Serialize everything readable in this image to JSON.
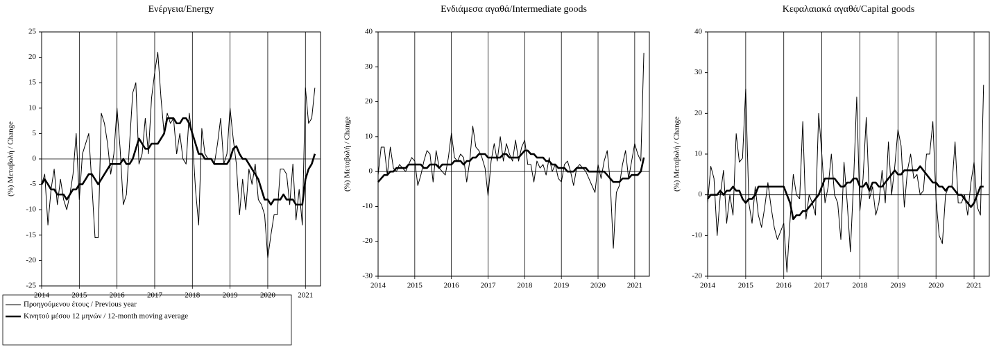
{
  "chart_data": [
    {
      "type": "line",
      "title": "Ενέργεια/Energy",
      "ylabel": "(%) Μεταβολή / Change",
      "x": [
        2014,
        2014.083,
        2014.167,
        2014.25,
        2014.333,
        2014.417,
        2014.5,
        2014.583,
        2014.667,
        2014.75,
        2014.833,
        2014.917,
        2015,
        2015.083,
        2015.167,
        2015.25,
        2015.333,
        2015.417,
        2015.5,
        2015.583,
        2015.667,
        2015.75,
        2015.833,
        2015.917,
        2016,
        2016.083,
        2016.167,
        2016.25,
        2016.333,
        2016.417,
        2016.5,
        2016.583,
        2016.667,
        2016.75,
        2016.833,
        2016.917,
        2017,
        2017.083,
        2017.167,
        2017.25,
        2017.333,
        2017.417,
        2017.5,
        2017.583,
        2017.667,
        2017.75,
        2017.833,
        2017.917,
        2018,
        2018.083,
        2018.167,
        2018.25,
        2018.333,
        2018.417,
        2018.5,
        2018.583,
        2018.667,
        2018.75,
        2018.833,
        2018.917,
        2019,
        2019.083,
        2019.167,
        2019.25,
        2019.333,
        2019.417,
        2019.5,
        2019.583,
        2019.667,
        2019.75,
        2019.833,
        2019.917,
        2020,
        2020.083,
        2020.167,
        2020.25,
        2020.333,
        2020.417,
        2020.5,
        2020.583,
        2020.667,
        2020.75,
        2020.833,
        2020.917,
        2021,
        2021.083,
        2021.167,
        2021.25
      ],
      "xlim": [
        2014,
        2021.4
      ],
      "xticks": [
        2014,
        2015,
        2016,
        2017,
        2018,
        2019,
        2020,
        2021
      ],
      "ylim": [
        -25,
        25
      ],
      "yticks": [
        -25,
        -20,
        -15,
        -10,
        -5,
        0,
        5,
        10,
        15,
        20,
        25
      ],
      "series": [
        {
          "name": "Προηγούμενου έτους / Previous year",
          "color": "#000000",
          "values": [
            -5,
            -3,
            -13,
            -6,
            -2,
            -9,
            -4,
            -8,
            -10,
            -7,
            -3,
            5,
            -8,
            1,
            3,
            5,
            -5,
            -15.5,
            -15.5,
            9,
            7,
            3,
            -3,
            1,
            10,
            2,
            -9,
            -7,
            3,
            13,
            15,
            -1,
            1,
            8,
            1,
            12,
            17,
            21,
            12,
            5,
            9,
            7,
            8,
            1,
            5,
            0,
            -1,
            9,
            4,
            -6,
            -13,
            6,
            1,
            0,
            0,
            -1,
            3,
            8,
            -1,
            1,
            10,
            4,
            -1,
            -11,
            -4,
            -10,
            -2,
            -5,
            -1,
            -8,
            -9,
            -11,
            -19.5,
            -15,
            -11,
            -11,
            -2,
            -2,
            -3,
            -9,
            -1,
            -12,
            -6,
            -13,
            14,
            7,
            8,
            14
          ]
        },
        {
          "name": "Κινητού μέσου 12 μηνών / 12-month moving average",
          "color": "#000000",
          "values": [
            -5,
            -4,
            -5,
            -6,
            -6,
            -7,
            -7,
            -7,
            -8,
            -7,
            -6,
            -6,
            -5,
            -5,
            -4,
            -3,
            -3,
            -4,
            -5,
            -4,
            -3,
            -2,
            -1,
            -1,
            -1,
            -1,
            0,
            -1,
            -1,
            0,
            2,
            4,
            3,
            2,
            2,
            3,
            3,
            3,
            4,
            5,
            8,
            8,
            8,
            7,
            7,
            8,
            8,
            7,
            5,
            3,
            1,
            1,
            0,
            0,
            0,
            -1,
            -1,
            -1,
            -1,
            -1,
            0,
            2,
            2.5,
            1,
            0,
            0,
            -1,
            -2,
            -3,
            -4,
            -6,
            -8,
            -8,
            -9,
            -8,
            -8,
            -8,
            -7,
            -8,
            -8,
            -8,
            -9,
            -9,
            -9,
            -4,
            -2,
            -1,
            1
          ]
        }
      ]
    },
    {
      "type": "line",
      "title": "Ενδιάμεσα αγαθά/Intermediate goods",
      "ylabel": "(%) Μεταβολή / Change",
      "x": [
        2014,
        2014.083,
        2014.167,
        2014.25,
        2014.333,
        2014.417,
        2014.5,
        2014.583,
        2014.667,
        2014.75,
        2014.833,
        2014.917,
        2015,
        2015.083,
        2015.167,
        2015.25,
        2015.333,
        2015.417,
        2015.5,
        2015.583,
        2015.667,
        2015.75,
        2015.833,
        2015.917,
        2016,
        2016.083,
        2016.167,
        2016.25,
        2016.333,
        2016.417,
        2016.5,
        2016.583,
        2016.667,
        2016.75,
        2016.833,
        2016.917,
        2017,
        2017.083,
        2017.167,
        2017.25,
        2017.333,
        2017.417,
        2017.5,
        2017.583,
        2017.667,
        2017.75,
        2017.833,
        2017.917,
        2018,
        2018.083,
        2018.167,
        2018.25,
        2018.333,
        2018.417,
        2018.5,
        2018.583,
        2018.667,
        2018.75,
        2018.833,
        2018.917,
        2019,
        2019.083,
        2019.167,
        2019.25,
        2019.333,
        2019.417,
        2019.5,
        2019.583,
        2019.667,
        2019.75,
        2019.833,
        2019.917,
        2020,
        2020.083,
        2020.167,
        2020.25,
        2020.333,
        2020.417,
        2020.5,
        2020.583,
        2020.667,
        2020.75,
        2020.833,
        2020.917,
        2021,
        2021.083,
        2021.167,
        2021.25
      ],
      "xlim": [
        2014,
        2021.4
      ],
      "xticks": [
        2014,
        2015,
        2016,
        2017,
        2018,
        2019,
        2020,
        2021
      ],
      "ylim": [
        -30,
        40
      ],
      "yticks": [
        -30,
        -20,
        -10,
        0,
        10,
        20,
        30,
        40
      ],
      "series": [
        {
          "color": "#000000",
          "values": [
            -1,
            7,
            7,
            -1,
            7,
            1,
            0,
            2,
            1,
            0,
            2,
            4,
            3,
            -4,
            -1,
            3,
            6,
            5,
            -3,
            6,
            1,
            0,
            -1,
            4,
            11,
            4,
            3,
            5,
            4,
            -3,
            3,
            13,
            7,
            6,
            4,
            1,
            -7,
            3,
            8,
            3,
            10,
            3,
            8,
            5,
            3,
            9,
            3,
            7,
            9,
            2,
            2,
            -3,
            3,
            1,
            2,
            -1,
            4,
            0,
            2,
            -2,
            -3,
            2,
            3,
            0,
            -4,
            1,
            2,
            1,
            0,
            -2,
            -4,
            -6,
            2,
            -2,
            3,
            6,
            -3,
            -22,
            -6,
            -4,
            2,
            6,
            -2,
            3,
            8,
            5,
            3,
            34
          ]
        },
        {
          "color": "#000000",
          "values": [
            -3,
            -2,
            -1,
            -1,
            0,
            0,
            1,
            1,
            1,
            1,
            2,
            2,
            2,
            2,
            2,
            1,
            1,
            2,
            2,
            2,
            1,
            2,
            2,
            2,
            2,
            3,
            3,
            3,
            2,
            3,
            3,
            4,
            4,
            5,
            5,
            5,
            4,
            4,
            4,
            4,
            4,
            5,
            5,
            4,
            4,
            4,
            4,
            5,
            6,
            6,
            5,
            5,
            4,
            4,
            4,
            3,
            3,
            2,
            2,
            1,
            1,
            1,
            0,
            0,
            0,
            1,
            1,
            1,
            1,
            0,
            0,
            0,
            0,
            0,
            0,
            -1,
            -2,
            -3,
            -3,
            -3,
            -2,
            -2,
            -2,
            -1,
            -1,
            -1,
            0,
            4
          ]
        }
      ]
    },
    {
      "type": "line",
      "title": "Κεφαλαιακά αγαθά/Capital goods",
      "ylabel": "(%) Μεταβολή / Change",
      "x": [
        2014,
        2014.083,
        2014.167,
        2014.25,
        2014.333,
        2014.417,
        2014.5,
        2014.583,
        2014.667,
        2014.75,
        2014.833,
        2014.917,
        2015,
        2015.083,
        2015.167,
        2015.25,
        2015.333,
        2015.417,
        2015.5,
        2015.583,
        2015.667,
        2015.75,
        2015.833,
        2015.917,
        2016,
        2016.083,
        2016.167,
        2016.25,
        2016.333,
        2016.417,
        2016.5,
        2016.583,
        2016.667,
        2016.75,
        2016.833,
        2016.917,
        2017,
        2017.083,
        2017.167,
        2017.25,
        2017.333,
        2017.417,
        2017.5,
        2017.583,
        2017.667,
        2017.75,
        2017.833,
        2017.917,
        2018,
        2018.083,
        2018.167,
        2018.25,
        2018.333,
        2018.417,
        2018.5,
        2018.583,
        2018.667,
        2018.75,
        2018.833,
        2018.917,
        2019,
        2019.083,
        2019.167,
        2019.25,
        2019.333,
        2019.417,
        2019.5,
        2019.583,
        2019.667,
        2019.75,
        2019.833,
        2019.917,
        2020,
        2020.083,
        2020.167,
        2020.25,
        2020.333,
        2020.417,
        2020.5,
        2020.583,
        2020.667,
        2020.75,
        2020.833,
        2020.917,
        2021,
        2021.083,
        2021.167,
        2021.25
      ],
      "xlim": [
        2014,
        2021.4
      ],
      "xticks": [
        2014,
        2015,
        2016,
        2017,
        2018,
        2019,
        2020,
        2021
      ],
      "ylim": [
        -20,
        40
      ],
      "yticks": [
        -20,
        -10,
        0,
        10,
        20,
        30,
        40
      ],
      "series": [
        {
          "color": "#000000",
          "values": [
            -2,
            7,
            4,
            -10,
            0,
            6,
            -7,
            0,
            -5,
            15,
            8,
            9,
            26,
            -2,
            -7,
            2,
            -5,
            -8,
            -3,
            3,
            -3,
            -8,
            -11,
            -9,
            -7,
            -19,
            -6,
            5,
            0,
            -1,
            18,
            -6,
            0,
            -2,
            -5,
            20,
            10,
            -2,
            2,
            10,
            0,
            -2,
            -11,
            8,
            -2,
            -14,
            3,
            24,
            -4,
            4,
            19,
            -1,
            2,
            -5,
            -2,
            6,
            -2,
            13,
            0,
            7,
            16,
            12,
            -3,
            6,
            10,
            4,
            5,
            0,
            1,
            10,
            10,
            18,
            -1,
            -10,
            -12,
            0,
            2,
            2,
            13,
            -2,
            -2,
            0,
            -5,
            3,
            8,
            -3,
            -5,
            27
          ]
        },
        {
          "color": "#000000",
          "values": [
            -1,
            0,
            0,
            0,
            1,
            0,
            1,
            1,
            2,
            1,
            1,
            -1,
            -2,
            -1,
            -1,
            0,
            2,
            2,
            2,
            2,
            2,
            2,
            2,
            2,
            2,
            0,
            -2,
            -6,
            -5,
            -5,
            -4,
            -4,
            -3,
            -2,
            -1,
            0,
            2,
            4,
            4,
            4,
            4,
            3,
            2,
            2,
            3,
            3,
            4,
            4,
            2,
            2,
            3,
            1,
            3,
            3,
            2,
            2,
            3,
            4,
            5,
            6,
            5,
            5,
            6,
            6,
            6,
            6,
            6,
            7,
            6,
            5,
            4,
            3,
            3,
            2,
            2,
            1,
            2,
            2,
            1,
            0,
            0,
            -1,
            -2,
            -3,
            -2,
            0,
            2,
            2
          ]
        }
      ]
    }
  ]
}
